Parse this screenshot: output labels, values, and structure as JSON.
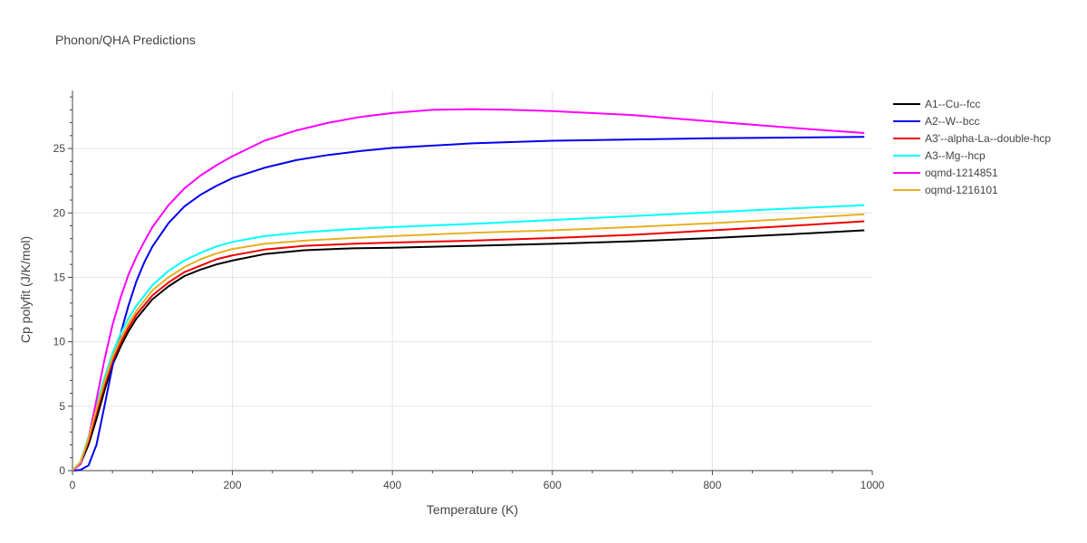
{
  "title": "Phonon/QHA Predictions",
  "chart_data": {
    "type": "line",
    "title": "Phonon/QHA Predictions",
    "xlabel": "Temperature (K)",
    "ylabel": "Cp polyfit (J/K/mol)",
    "xlim": [
      0,
      1000
    ],
    "ylim": [
      0,
      29.5
    ],
    "x_ticks": [
      0,
      200,
      400,
      600,
      800,
      1000
    ],
    "y_ticks": [
      0,
      5,
      10,
      15,
      20,
      25
    ],
    "grid": true,
    "legend_position": "right",
    "series": [
      {
        "name": "A1--Cu--fcc",
        "color": "#000000",
        "x": [
          0,
          10,
          20,
          30,
          40,
          50,
          60,
          70,
          80,
          100,
          120,
          140,
          160,
          180,
          200,
          240,
          290,
          350,
          400,
          500,
          600,
          700,
          800,
          900,
          990
        ],
        "y": [
          0,
          0.5,
          2.0,
          4.0,
          6.2,
          8.2,
          9.6,
          10.8,
          11.8,
          13.3,
          14.3,
          15.1,
          15.6,
          16.0,
          16.3,
          16.8,
          17.1,
          17.25,
          17.3,
          17.45,
          17.6,
          17.8,
          18.05,
          18.35,
          18.65
        ]
      },
      {
        "name": "A2--W--bcc",
        "color": "#0000ee",
        "x": [
          0,
          10,
          20,
          30,
          40,
          50,
          60,
          70,
          80,
          90,
          100,
          120,
          140,
          160,
          180,
          200,
          240,
          280,
          320,
          360,
          400,
          500,
          600,
          700,
          800,
          900,
          990
        ],
        "y": [
          0,
          0.05,
          0.4,
          2.0,
          5.0,
          8.1,
          10.6,
          12.8,
          14.7,
          16.2,
          17.4,
          19.2,
          20.5,
          21.4,
          22.1,
          22.7,
          23.5,
          24.1,
          24.5,
          24.8,
          25.05,
          25.4,
          25.6,
          25.7,
          25.8,
          25.85,
          25.9
        ]
      },
      {
        "name": "A3'--alpha-La--double-hcp",
        "color": "#ee0000",
        "x": [
          0,
          10,
          20,
          30,
          40,
          50,
          60,
          70,
          80,
          100,
          120,
          140,
          160,
          180,
          200,
          240,
          290,
          350,
          400,
          500,
          600,
          700,
          800,
          900,
          990
        ],
        "y": [
          0,
          0.6,
          2.3,
          4.5,
          6.6,
          8.5,
          9.9,
          11.1,
          12.1,
          13.6,
          14.6,
          15.4,
          15.9,
          16.4,
          16.7,
          17.15,
          17.45,
          17.6,
          17.7,
          17.85,
          18.05,
          18.3,
          18.65,
          19.0,
          19.35
        ]
      },
      {
        "name": "A3--Mg--hcp",
        "color": "#00ffff",
        "x": [
          0,
          10,
          20,
          30,
          40,
          50,
          60,
          70,
          80,
          100,
          120,
          140,
          160,
          180,
          200,
          240,
          290,
          350,
          400,
          500,
          600,
          700,
          800,
          900,
          990
        ],
        "y": [
          0,
          0.7,
          2.6,
          5.0,
          7.2,
          9.1,
          10.6,
          11.8,
          12.8,
          14.4,
          15.5,
          16.3,
          16.9,
          17.4,
          17.75,
          18.2,
          18.5,
          18.75,
          18.9,
          19.15,
          19.45,
          19.75,
          20.05,
          20.35,
          20.6
        ]
      },
      {
        "name": "oqmd-1214851",
        "color": "#ff00ff",
        "x": [
          0,
          10,
          20,
          30,
          40,
          50,
          60,
          70,
          80,
          90,
          100,
          120,
          140,
          160,
          180,
          200,
          240,
          280,
          320,
          360,
          400,
          450,
          500,
          550,
          600,
          700,
          800,
          900,
          990
        ],
        "y": [
          0,
          0.5,
          2.5,
          5.5,
          8.6,
          11.3,
          13.4,
          15.2,
          16.6,
          17.8,
          18.9,
          20.6,
          21.9,
          22.9,
          23.7,
          24.4,
          25.6,
          26.4,
          27.0,
          27.45,
          27.75,
          28.0,
          28.05,
          28.0,
          27.9,
          27.6,
          27.1,
          26.6,
          26.2
        ]
      },
      {
        "name": "oqmd-1216101",
        "color": "#e6b022",
        "x": [
          0,
          10,
          20,
          30,
          40,
          50,
          60,
          70,
          80,
          100,
          120,
          140,
          160,
          180,
          200,
          240,
          290,
          350,
          400,
          500,
          600,
          700,
          800,
          900,
          990
        ],
        "y": [
          0,
          0.65,
          2.5,
          4.8,
          6.9,
          8.8,
          10.2,
          11.4,
          12.4,
          14.0,
          15.0,
          15.8,
          16.4,
          16.85,
          17.2,
          17.6,
          17.85,
          18.05,
          18.2,
          18.45,
          18.65,
          18.9,
          19.2,
          19.55,
          19.9
        ]
      }
    ]
  }
}
